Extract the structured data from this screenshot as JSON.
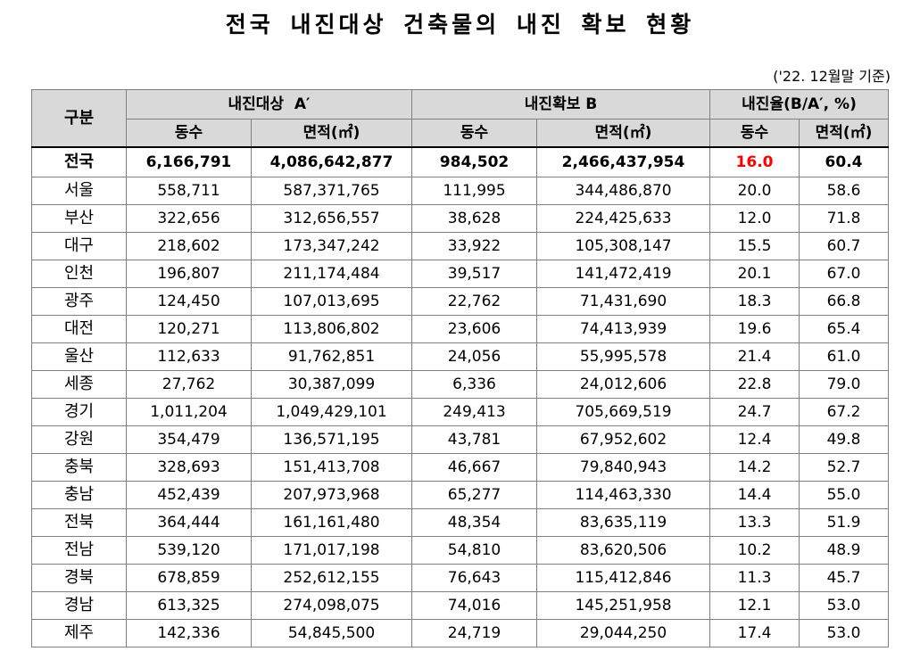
{
  "title": "전국 내진대상 건축물의 내진 확보 현황",
  "note": "('22. 12월말 기준)",
  "header": {
    "category": "구분",
    "group_a": "내진대상  A′",
    "group_b": "내진확보 B",
    "group_rate": "내진율(B/A′, %)",
    "count": "동수",
    "area": "면적(㎡)"
  },
  "colors": {
    "header_bg": "#d9d9d9",
    "highlight": "#ff0000",
    "border": "#808080"
  },
  "total": {
    "region": "전국",
    "a_count": "6,166,791",
    "a_area": "4,086,642,877",
    "b_count": "984,502",
    "b_area": "2,466,437,954",
    "rate_count": "16.0",
    "rate_area": "60.4"
  },
  "rows": [
    {
      "region": "서울",
      "a_count": "558,711",
      "a_area": "587,371,765",
      "b_count": "111,995",
      "b_area": "344,486,870",
      "rate_count": "20.0",
      "rate_area": "58.6"
    },
    {
      "region": "부산",
      "a_count": "322,656",
      "a_area": "312,656,557",
      "b_count": "38,628",
      "b_area": "224,425,633",
      "rate_count": "12.0",
      "rate_area": "71.8"
    },
    {
      "region": "대구",
      "a_count": "218,602",
      "a_area": "173,347,242",
      "b_count": "33,922",
      "b_area": "105,308,147",
      "rate_count": "15.5",
      "rate_area": "60.7"
    },
    {
      "region": "인천",
      "a_count": "196,807",
      "a_area": "211,174,484",
      "b_count": "39,517",
      "b_area": "141,472,419",
      "rate_count": "20.1",
      "rate_area": "67.0"
    },
    {
      "region": "광주",
      "a_count": "124,450",
      "a_area": "107,013,695",
      "b_count": "22,762",
      "b_area": "71,431,690",
      "rate_count": "18.3",
      "rate_area": "66.8"
    },
    {
      "region": "대전",
      "a_count": "120,271",
      "a_area": "113,806,802",
      "b_count": "23,606",
      "b_area": "74,413,939",
      "rate_count": "19.6",
      "rate_area": "65.4"
    },
    {
      "region": "울산",
      "a_count": "112,633",
      "a_area": "91,762,851",
      "b_count": "24,056",
      "b_area": "55,995,578",
      "rate_count": "21.4",
      "rate_area": "61.0"
    },
    {
      "region": "세종",
      "a_count": "27,762",
      "a_area": "30,387,099",
      "b_count": "6,336",
      "b_area": "24,012,606",
      "rate_count": "22.8",
      "rate_area": "79.0"
    },
    {
      "region": "경기",
      "a_count": "1,011,204",
      "a_area": "1,049,429,101",
      "b_count": "249,413",
      "b_area": "705,669,519",
      "rate_count": "24.7",
      "rate_area": "67.2"
    },
    {
      "region": "강원",
      "a_count": "354,479",
      "a_area": "136,571,195",
      "b_count": "43,781",
      "b_area": "67,952,602",
      "rate_count": "12.4",
      "rate_area": "49.8"
    },
    {
      "region": "충북",
      "a_count": "328,693",
      "a_area": "151,413,708",
      "b_count": "46,667",
      "b_area": "79,840,943",
      "rate_count": "14.2",
      "rate_area": "52.7"
    },
    {
      "region": "충남",
      "a_count": "452,439",
      "a_area": "207,973,968",
      "b_count": "65,277",
      "b_area": "114,463,330",
      "rate_count": "14.4",
      "rate_area": "55.0"
    },
    {
      "region": "전북",
      "a_count": "364,444",
      "a_area": "161,161,480",
      "b_count": "48,354",
      "b_area": "83,635,119",
      "rate_count": "13.3",
      "rate_area": "51.9"
    },
    {
      "region": "전남",
      "a_count": "539,120",
      "a_area": "171,017,198",
      "b_count": "54,810",
      "b_area": "83,620,506",
      "rate_count": "10.2",
      "rate_area": "48.9"
    },
    {
      "region": "경북",
      "a_count": "678,859",
      "a_area": "252,612,155",
      "b_count": "76,643",
      "b_area": "115,412,846",
      "rate_count": "11.3",
      "rate_area": "45.7"
    },
    {
      "region": "경남",
      "a_count": "613,325",
      "a_area": "274,098,075",
      "b_count": "74,016",
      "b_area": "145,251,958",
      "rate_count": "12.1",
      "rate_area": "53.0"
    },
    {
      "region": "제주",
      "a_count": "142,336",
      "a_area": "54,845,500",
      "b_count": "24,719",
      "b_area": "29,044,250",
      "rate_count": "17.4",
      "rate_area": "53.0"
    }
  ]
}
